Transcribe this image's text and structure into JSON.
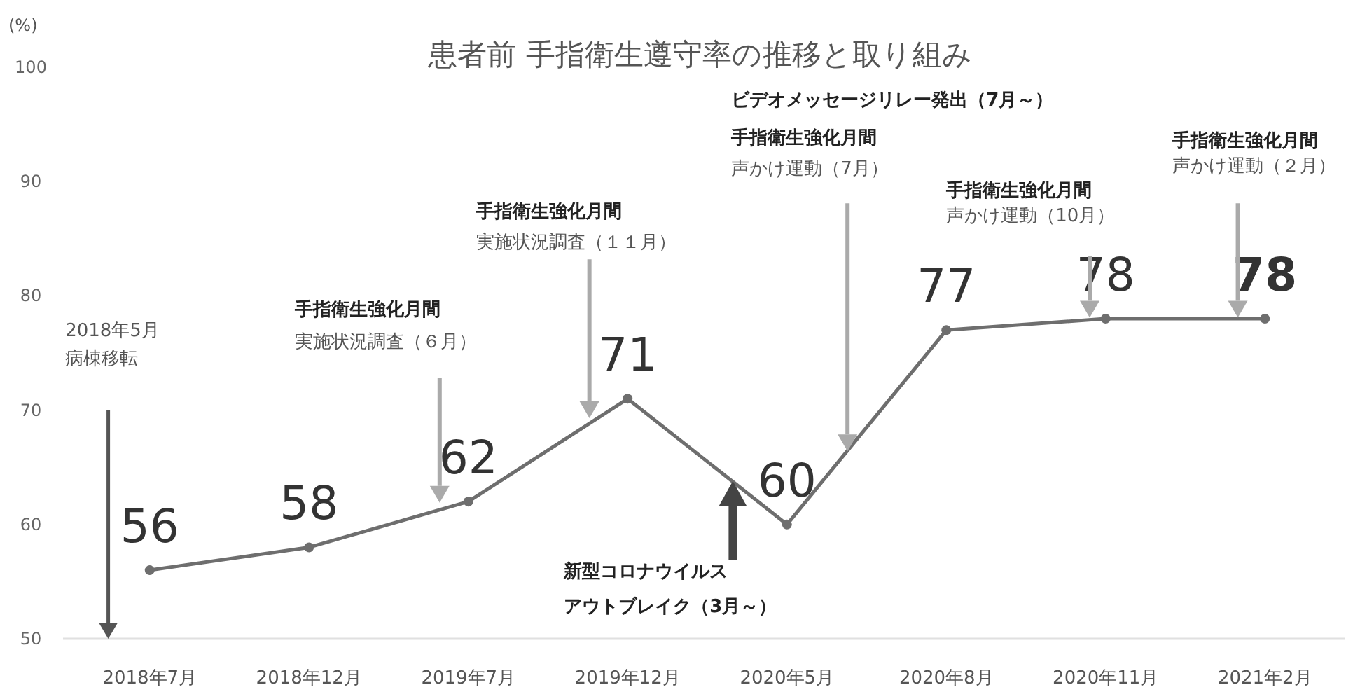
{
  "chart_data": {
    "type": "line",
    "title": "患者前 手指衛生遵守率の推移と取り組み",
    "ylabel": "(%)",
    "categories": [
      "2018年7月",
      "2018年12月",
      "2019年7月",
      "2019年12月",
      "2020年5月",
      "2020年8月",
      "2020年11月",
      "2021年2月"
    ],
    "series": [
      {
        "color": "#6e6e6e",
        "values": [
          56,
          58,
          62,
          71,
          60,
          77,
          78,
          78
        ]
      }
    ],
    "ylim": [
      50,
      100
    ],
    "yticks": [
      50,
      60,
      70,
      80,
      90,
      100
    ],
    "grid": false,
    "marker": "circle",
    "data_labels": true,
    "annotations": [
      "2018年5月",
      "病棟移転",
      "手指衛生強化月間",
      "実施状況調査（６月）",
      "手指衛生強化月間",
      "実施状況調査（１１月）",
      "新型コロナウイルス",
      "アウトブレイク（3月～）",
      "ビデオメッセージリレー発出（7月～）",
      "手指衛生強化月間",
      "声かけ運動（7月）",
      "手指衛生強化月間",
      "声かけ運動（10月）",
      "手指衛生強化月間",
      "声かけ運動（２月）"
    ]
  }
}
